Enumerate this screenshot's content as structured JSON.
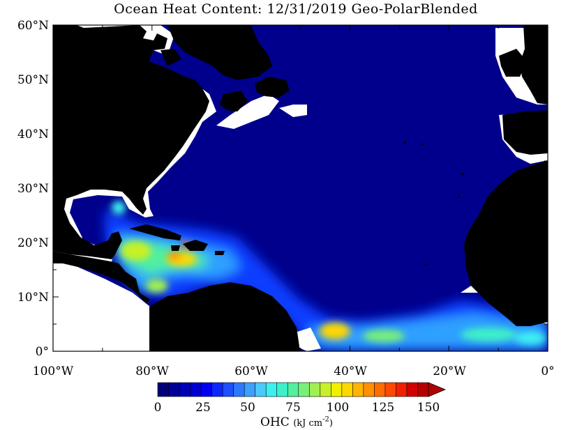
{
  "title": "Ocean Heat Content: 12/31/2019 Geo-PolarBlended",
  "axes": {
    "lat_labels": [
      "60°N",
      "50°N",
      "40°N",
      "30°N",
      "20°N",
      "10°N",
      "0°"
    ],
    "lon_labels": [
      "100°W",
      "80°W",
      "60°W",
      "40°W",
      "20°W",
      "0°"
    ]
  },
  "colorbar": {
    "unit_main": "OHC",
    "unit_sub": "(kJ cm",
    "unit_exp": "-2",
    "unit_close": ")",
    "tick_labels": [
      "0",
      "25",
      "50",
      "75",
      "100",
      "125",
      "150"
    ],
    "min": 0,
    "max": 150,
    "colors": [
      "#00007a",
      "#000096",
      "#0000b4",
      "#0000d2",
      "#0000f0",
      "#0a28ff",
      "#1e50ff",
      "#2d78ff",
      "#3ca0ff",
      "#4bc8ff",
      "#3cf0f0",
      "#3cf0c8",
      "#50f0a0",
      "#78f078",
      "#a0f050",
      "#c8f028",
      "#f0f000",
      "#ffd700",
      "#ffb400",
      "#ff9000",
      "#ff6c00",
      "#ff4800",
      "#f02000",
      "#d20000",
      "#b40000"
    ]
  },
  "map": {
    "ocean_color": "#00008c",
    "land_color": "#000000"
  }
}
